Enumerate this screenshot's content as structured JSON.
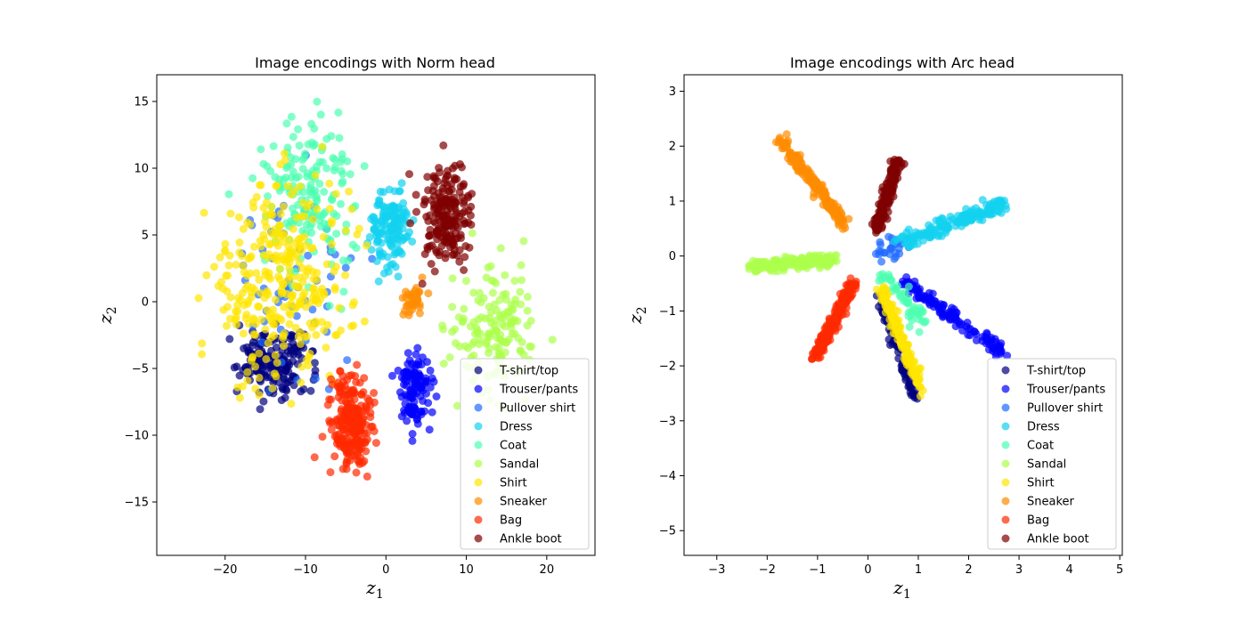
{
  "chart_data": [
    {
      "type": "scatter",
      "title": "Image encodings with Norm head",
      "xlabel": "z",
      "xlabel_sub": "1",
      "ylabel": "z",
      "ylabel_sub": "2",
      "xlim": [
        -28.5,
        26.0
      ],
      "ylim": [
        -19.0,
        17.0
      ],
      "xticks": [
        -20,
        -10,
        0,
        10,
        20
      ],
      "yticks": [
        -15,
        -10,
        -5,
        0,
        5,
        10,
        15
      ],
      "legend_position": "lower right",
      "series": [
        {
          "name": "T-shirt/top",
          "color": "#00007f",
          "centroid": [
            -14,
            -4.5
          ],
          "direction": [
            -12,
            -5
          ],
          "spread": 1.1,
          "count": 170
        },
        {
          "name": "Trouser/pants",
          "color": "#0000ff",
          "centroid": [
            3.5,
            -6.5
          ],
          "direction": [
            2.5,
            -6
          ],
          "spread": 0.9,
          "count": 120
        },
        {
          "name": "Pullover shirt",
          "color": "#1f6bff",
          "centroid": [
            -12,
            1
          ],
          "direction": [
            -4,
            3
          ],
          "spread": 3.5,
          "count": 60
        },
        {
          "name": "Dress",
          "color": "#12d2f0",
          "centroid": [
            0.5,
            5.5
          ],
          "direction": [
            0.8,
            6
          ],
          "spread": 1.2,
          "count": 140
        },
        {
          "name": "Coat",
          "color": "#4cffb0",
          "centroid": [
            -9.5,
            8
          ],
          "direction": [
            -4,
            4
          ],
          "spread": 2.8,
          "count": 170
        },
        {
          "name": "Sandal",
          "color": "#adff4c",
          "centroid": [
            13.5,
            -2.2
          ],
          "direction": [
            7,
            -2
          ],
          "spread": 2.2,
          "count": 160
        },
        {
          "name": "Shirt",
          "color": "#ffe600",
          "centroid": [
            -13,
            1.5
          ],
          "direction": [
            -7,
            2
          ],
          "spread": 3.6,
          "count": 320
        },
        {
          "name": "Sneaker",
          "color": "#ff8c00",
          "centroid": [
            3.5,
            0.2
          ],
          "direction": [
            2.5,
            0.8
          ],
          "spread": 0.6,
          "count": 40
        },
        {
          "name": "Bag",
          "color": "#ff2a00",
          "centroid": [
            -4.5,
            -9
          ],
          "direction": [
            1.6,
            7
          ],
          "spread": 1.2,
          "count": 220
        },
        {
          "name": "Ankle boot",
          "color": "#7f0000",
          "centroid": [
            7.5,
            6.5
          ],
          "direction": [
            5,
            8
          ],
          "spread": 1.3,
          "count": 200
        }
      ]
    },
    {
      "type": "scatter",
      "title": "Image encodings with Arc head",
      "xlabel": "z",
      "xlabel_sub": "1",
      "ylabel": "z",
      "ylabel_sub": "2",
      "xlim": [
        -3.65,
        5.05
      ],
      "ylim": [
        -5.45,
        3.3
      ],
      "xticks": [
        -3,
        -2,
        -1,
        0,
        1,
        2,
        3,
        4,
        5
      ],
      "yticks": [
        -5,
        -4,
        -3,
        -2,
        -1,
        0,
        1,
        2,
        3
      ],
      "legend_position": "lower right",
      "series": [
        {
          "name": "T-shirt/top",
          "color": "#00007f",
          "centroid": [
            0.7,
            -2.0
          ],
          "direction": [
            0.65,
            -1.6
          ],
          "spread": 0.05,
          "count": 90
        },
        {
          "name": "Trouser/pants",
          "color": "#0000ff",
          "centroid": [
            2.0,
            -1.3
          ],
          "direction": [
            1.4,
            -0.9
          ],
          "spread": 0.06,
          "count": 130
        },
        {
          "name": "Pullover shirt",
          "color": "#1f6bff",
          "centroid": [
            0.5,
            0.2
          ],
          "direction": [
            0.5,
            0.2
          ],
          "spread": 0.12,
          "count": 30
        },
        {
          "name": "Dress",
          "color": "#12d2f0",
          "centroid": [
            2.0,
            0.7
          ],
          "direction": [
            2.1,
            0.8
          ],
          "spread": 0.07,
          "count": 170
        },
        {
          "name": "Coat",
          "color": "#4cffb0",
          "centroid": [
            0.8,
            -0.9
          ],
          "direction": [
            0.2,
            -0.6
          ],
          "spread": 0.08,
          "count": 50
        },
        {
          "name": "Sandal",
          "color": "#adff4c",
          "centroid": [
            -1.7,
            -0.15
          ],
          "direction": [
            -1.5,
            -0.15
          ],
          "spread": 0.05,
          "count": 200
        },
        {
          "name": "Shirt",
          "color": "#ffe600",
          "centroid": [
            0.8,
            -1.8
          ],
          "direction": [
            0.35,
            -1.3
          ],
          "spread": 0.05,
          "count": 150
        },
        {
          "name": "Sneaker",
          "color": "#ff8c00",
          "centroid": [
            -1.3,
            1.6
          ],
          "direction": [
            -0.9,
            1.2
          ],
          "spread": 0.05,
          "count": 190
        },
        {
          "name": "Bag",
          "color": "#ff2a00",
          "centroid": [
            -0.8,
            -1.4
          ],
          "direction": [
            -0.8,
            -1.4
          ],
          "spread": 0.05,
          "count": 230
        },
        {
          "name": "Ankle boot",
          "color": "#7f0000",
          "centroid": [
            0.45,
            1.3
          ],
          "direction": [
            0.45,
            1.0
          ],
          "spread": 0.05,
          "count": 180
        }
      ]
    }
  ]
}
